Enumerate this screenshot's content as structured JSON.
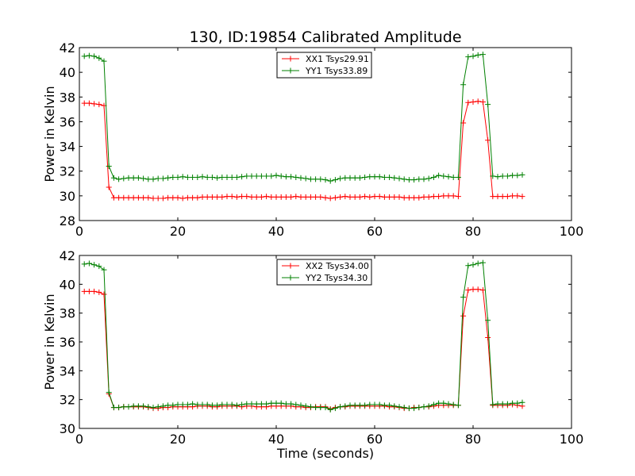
{
  "chart_data": [
    {
      "type": "line",
      "title": "130, ID:19854 Calibrated Amplitude",
      "xlabel": "",
      "ylabel": "Power in Kelvin",
      "xlim": [
        0,
        100
      ],
      "ylim": [
        28,
        42
      ],
      "xticks": [
        "0",
        "20",
        "40",
        "60",
        "80",
        "100"
      ],
      "yticks": [
        "28",
        "30",
        "32",
        "34",
        "36",
        "38",
        "40",
        "42"
      ],
      "legend_position": "top-center",
      "x": [
        1,
        2,
        3,
        4,
        5,
        6,
        7,
        8,
        9,
        10,
        11,
        12,
        13,
        14,
        15,
        16,
        17,
        18,
        19,
        20,
        21,
        22,
        23,
        24,
        25,
        26,
        27,
        28,
        29,
        30,
        31,
        32,
        33,
        34,
        35,
        36,
        37,
        38,
        39,
        40,
        41,
        42,
        43,
        44,
        45,
        46,
        47,
        48,
        49,
        50,
        51,
        52,
        53,
        54,
        55,
        56,
        57,
        58,
        59,
        60,
        61,
        62,
        63,
        64,
        65,
        66,
        67,
        68,
        69,
        70,
        71,
        72,
        73,
        74,
        75,
        76,
        77,
        78,
        79,
        80,
        81,
        82,
        83,
        84,
        85,
        86,
        87,
        88,
        89,
        90
      ],
      "series": [
        {
          "name": "XX1 Tsys29.91",
          "color": "#ff0000",
          "values": [
            37.5,
            37.5,
            37.45,
            37.4,
            37.3,
            30.7,
            29.85,
            29.85,
            29.85,
            29.85,
            29.85,
            29.85,
            29.85,
            29.85,
            29.8,
            29.8,
            29.8,
            29.85,
            29.85,
            29.85,
            29.8,
            29.85,
            29.85,
            29.85,
            29.9,
            29.9,
            29.9,
            29.9,
            29.9,
            29.95,
            29.95,
            29.9,
            29.95,
            29.95,
            29.9,
            29.9,
            29.9,
            29.95,
            29.9,
            29.9,
            29.9,
            29.9,
            29.9,
            29.95,
            29.9,
            29.9,
            29.9,
            29.9,
            29.9,
            29.85,
            29.8,
            29.85,
            29.9,
            29.95,
            29.9,
            29.9,
            29.9,
            29.95,
            29.9,
            29.95,
            29.95,
            29.9,
            29.9,
            29.9,
            29.9,
            29.85,
            29.85,
            29.85,
            29.85,
            29.9,
            29.9,
            29.95,
            29.95,
            30,
            30,
            30,
            29.95,
            35.9,
            37.55,
            37.6,
            37.65,
            37.6,
            34.5,
            29.95,
            29.95,
            29.95,
            29.95,
            30,
            30,
            29.95
          ]
        },
        {
          "name": "YY1 Tsys33.89",
          "color": "#008000",
          "values": [
            41.3,
            41.35,
            41.3,
            41.15,
            40.9,
            32.4,
            31.45,
            31.35,
            31.4,
            31.45,
            31.45,
            31.45,
            31.4,
            31.35,
            31.35,
            31.4,
            31.4,
            31.45,
            31.5,
            31.5,
            31.55,
            31.5,
            31.5,
            31.5,
            31.55,
            31.5,
            31.5,
            31.45,
            31.5,
            31.5,
            31.5,
            31.5,
            31.55,
            31.6,
            31.6,
            31.6,
            31.6,
            31.6,
            31.6,
            31.65,
            31.6,
            31.55,
            31.55,
            31.5,
            31.45,
            31.4,
            31.35,
            31.35,
            31.35,
            31.3,
            31.2,
            31.3,
            31.4,
            31.45,
            31.45,
            31.45,
            31.45,
            31.5,
            31.55,
            31.55,
            31.55,
            31.5,
            31.5,
            31.45,
            31.4,
            31.35,
            31.3,
            31.3,
            31.35,
            31.35,
            31.4,
            31.5,
            31.65,
            31.6,
            31.55,
            31.5,
            31.5,
            39,
            41.25,
            41.3,
            41.4,
            41.45,
            37.4,
            31.6,
            31.55,
            31.6,
            31.6,
            31.65,
            31.65,
            31.7
          ]
        }
      ]
    },
    {
      "type": "line",
      "title": "",
      "xlabel": "Time (seconds)",
      "ylabel": "Power in Kelvin",
      "xlim": [
        0,
        100
      ],
      "ylim": [
        30,
        42
      ],
      "xticks": [
        "0",
        "20",
        "40",
        "60",
        "80",
        "100"
      ],
      "yticks": [
        "30",
        "32",
        "34",
        "36",
        "38",
        "40",
        "42"
      ],
      "legend_position": "top-center",
      "x": [
        1,
        2,
        3,
        4,
        5,
        6,
        7,
        8,
        9,
        10,
        11,
        12,
        13,
        14,
        15,
        16,
        17,
        18,
        19,
        20,
        21,
        22,
        23,
        24,
        25,
        26,
        27,
        28,
        29,
        30,
        31,
        32,
        33,
        34,
        35,
        36,
        37,
        38,
        39,
        40,
        41,
        42,
        43,
        44,
        45,
        46,
        47,
        48,
        49,
        50,
        51,
        52,
        53,
        54,
        55,
        56,
        57,
        58,
        59,
        60,
        61,
        62,
        63,
        64,
        65,
        66,
        67,
        68,
        69,
        70,
        71,
        72,
        73,
        74,
        75,
        76,
        77,
        78,
        79,
        80,
        81,
        82,
        83,
        84,
        85,
        86,
        87,
        88,
        89,
        90
      ],
      "series": [
        {
          "name": "XX2 Tsys34.00",
          "color": "#ff0000",
          "values": [
            39.5,
            39.5,
            39.5,
            39.45,
            39.3,
            32.4,
            31.45,
            31.45,
            31.5,
            31.5,
            31.5,
            31.5,
            31.5,
            31.45,
            31.4,
            31.4,
            31.45,
            31.45,
            31.5,
            31.5,
            31.5,
            31.5,
            31.5,
            31.55,
            31.55,
            31.55,
            31.5,
            31.5,
            31.55,
            31.55,
            31.55,
            31.55,
            31.5,
            31.55,
            31.55,
            31.5,
            31.5,
            31.5,
            31.55,
            31.55,
            31.55,
            31.55,
            31.55,
            31.5,
            31.5,
            31.45,
            31.45,
            31.5,
            31.5,
            31.5,
            31.35,
            31.45,
            31.5,
            31.5,
            31.55,
            31.55,
            31.55,
            31.55,
            31.55,
            31.55,
            31.55,
            31.55,
            31.5,
            31.5,
            31.45,
            31.4,
            31.4,
            31.45,
            31.45,
            31.5,
            31.5,
            31.55,
            31.6,
            31.6,
            31.6,
            31.6,
            31.6,
            37.8,
            39.6,
            39.65,
            39.65,
            39.6,
            36.3,
            31.6,
            31.6,
            31.6,
            31.6,
            31.65,
            31.6,
            31.55
          ]
        },
        {
          "name": "YY2 Tsys34.30",
          "color": "#008000",
          "values": [
            41.4,
            41.45,
            41.35,
            41.25,
            41.0,
            32.5,
            31.45,
            31.45,
            31.5,
            31.5,
            31.55,
            31.55,
            31.55,
            31.5,
            31.45,
            31.5,
            31.55,
            31.6,
            31.6,
            31.65,
            31.65,
            31.65,
            31.7,
            31.65,
            31.65,
            31.65,
            31.6,
            31.6,
            31.65,
            31.65,
            31.65,
            31.6,
            31.65,
            31.7,
            31.7,
            31.7,
            31.7,
            31.7,
            31.75,
            31.75,
            31.75,
            31.7,
            31.7,
            31.65,
            31.6,
            31.55,
            31.5,
            31.45,
            31.45,
            31.45,
            31.3,
            31.4,
            31.5,
            31.55,
            31.6,
            31.6,
            31.6,
            31.6,
            31.65,
            31.65,
            31.65,
            31.6,
            31.6,
            31.55,
            31.5,
            31.45,
            31.4,
            31.4,
            31.45,
            31.5,
            31.55,
            31.65,
            31.75,
            31.75,
            31.7,
            31.65,
            31.6,
            39.1,
            41.3,
            41.35,
            41.45,
            41.5,
            37.5,
            31.65,
            31.7,
            31.7,
            31.7,
            31.75,
            31.75,
            31.8
          ]
        }
      ]
    }
  ]
}
